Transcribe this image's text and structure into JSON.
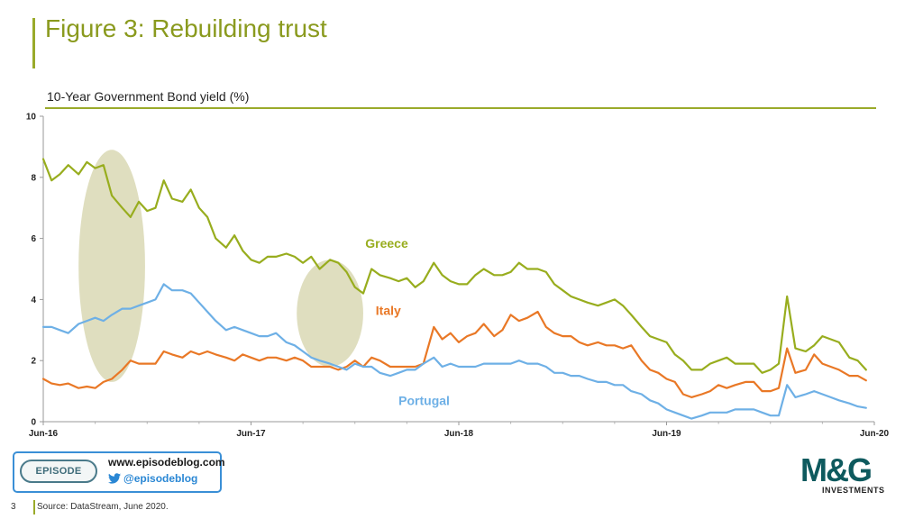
{
  "header": {
    "title": "Figure 3: Rebuilding trust",
    "subtitle": "10-Year Government Bond yield (%)"
  },
  "footer": {
    "page_number": "3",
    "source": "Source: DataStream, June 2020.",
    "promo_logo": "EPISODE",
    "promo_url": "www.episodeblog.com",
    "promo_handle": "@episodeblog",
    "brand_mark": "M&G",
    "brand_sub": "INVESTMENTS"
  },
  "colors": {
    "greece": "#98ad1e",
    "italy": "#e97826",
    "portugal": "#6eb0e6",
    "highlight": "#d9d8b4",
    "title": "#8a9a1e",
    "brand": "#0e5a5e"
  },
  "chart_data": {
    "type": "line",
    "title": "10-Year Government Bond yield (%)",
    "x_ticks": [
      "Jun-16",
      "Jun-17",
      "Jun-18",
      "Jun-19",
      "Jun-20"
    ],
    "y_ticks": [
      "0",
      "2",
      "4",
      "6",
      "8",
      "10"
    ],
    "xlim": [
      2016.5,
      2020.5
    ],
    "ylim": [
      0,
      10
    ],
    "grid": false,
    "series": [
      {
        "name": "Greece",
        "color": "#98ad1e",
        "x": [
          2016.5,
          2016.54,
          2016.58,
          2016.62,
          2016.67,
          2016.71,
          2016.75,
          2016.79,
          2016.83,
          2016.88,
          2016.92,
          2016.96,
          2017.0,
          2017.04,
          2017.08,
          2017.12,
          2017.17,
          2017.21,
          2017.25,
          2017.29,
          2017.33,
          2017.38,
          2017.42,
          2017.46,
          2017.5,
          2017.54,
          2017.58,
          2017.62,
          2017.67,
          2017.71,
          2017.75,
          2017.79,
          2017.83,
          2017.88,
          2017.92,
          2017.96,
          2018.0,
          2018.04,
          2018.08,
          2018.12,
          2018.17,
          2018.21,
          2018.25,
          2018.29,
          2018.33,
          2018.38,
          2018.42,
          2018.46,
          2018.5,
          2018.54,
          2018.58,
          2018.62,
          2018.67,
          2018.71,
          2018.75,
          2018.79,
          2018.83,
          2018.88,
          2018.92,
          2018.96,
          2019.0,
          2019.04,
          2019.08,
          2019.12,
          2019.17,
          2019.21,
          2019.25,
          2019.29,
          2019.33,
          2019.38,
          2019.42,
          2019.46,
          2019.5,
          2019.54,
          2019.58,
          2019.62,
          2019.67,
          2019.71,
          2019.75,
          2019.79,
          2019.83,
          2019.88,
          2019.92,
          2019.96,
          2020.0,
          2020.04,
          2020.08,
          2020.12,
          2020.17,
          2020.21,
          2020.25,
          2020.29,
          2020.33,
          2020.38,
          2020.42,
          2020.46
        ],
        "y": [
          8.6,
          7.9,
          8.1,
          8.4,
          8.1,
          8.5,
          8.3,
          8.4,
          7.4,
          7.0,
          6.7,
          7.2,
          6.9,
          7.0,
          7.9,
          7.3,
          7.2,
          7.6,
          7.0,
          6.7,
          6.0,
          5.7,
          6.1,
          5.6,
          5.3,
          5.2,
          5.4,
          5.4,
          5.5,
          5.4,
          5.2,
          5.4,
          5.0,
          5.3,
          5.2,
          4.9,
          4.4,
          4.2,
          5.0,
          4.8,
          4.7,
          4.6,
          4.7,
          4.4,
          4.6,
          5.2,
          4.8,
          4.6,
          4.5,
          4.5,
          4.8,
          5.0,
          4.8,
          4.8,
          4.9,
          5.2,
          5.0,
          5.0,
          4.9,
          4.5,
          4.3,
          4.1,
          4.0,
          3.9,
          3.8,
          3.9,
          4.0,
          3.8,
          3.5,
          3.1,
          2.8,
          2.7,
          2.6,
          2.2,
          2.0,
          1.7,
          1.7,
          1.9,
          2.0,
          2.1,
          1.9,
          1.9,
          1.9,
          1.6,
          1.7,
          1.9,
          4.1,
          2.4,
          2.3,
          2.5,
          2.8,
          2.7,
          2.6,
          2.1,
          2.0,
          1.7
        ]
      },
      {
        "name": "Italy",
        "color": "#e97826",
        "x": [
          2016.5,
          2016.54,
          2016.58,
          2016.62,
          2016.67,
          2016.71,
          2016.75,
          2016.79,
          2016.83,
          2016.88,
          2016.92,
          2016.96,
          2017.0,
          2017.04,
          2017.08,
          2017.12,
          2017.17,
          2017.21,
          2017.25,
          2017.29,
          2017.33,
          2017.38,
          2017.42,
          2017.46,
          2017.5,
          2017.54,
          2017.58,
          2017.62,
          2017.67,
          2017.71,
          2017.75,
          2017.79,
          2017.83,
          2017.88,
          2017.92,
          2017.96,
          2018.0,
          2018.04,
          2018.08,
          2018.12,
          2018.17,
          2018.21,
          2018.25,
          2018.29,
          2018.33,
          2018.38,
          2018.42,
          2018.46,
          2018.5,
          2018.54,
          2018.58,
          2018.62,
          2018.67,
          2018.71,
          2018.75,
          2018.79,
          2018.83,
          2018.88,
          2018.92,
          2018.96,
          2019.0,
          2019.04,
          2019.08,
          2019.12,
          2019.17,
          2019.21,
          2019.25,
          2019.29,
          2019.33,
          2019.38,
          2019.42,
          2019.46,
          2019.5,
          2019.54,
          2019.58,
          2019.62,
          2019.67,
          2019.71,
          2019.75,
          2019.79,
          2019.83,
          2019.88,
          2019.92,
          2019.96,
          2020.0,
          2020.04,
          2020.08,
          2020.12,
          2020.17,
          2020.21,
          2020.25,
          2020.29,
          2020.33,
          2020.38,
          2020.42,
          2020.46
        ],
        "y": [
          1.4,
          1.25,
          1.2,
          1.25,
          1.1,
          1.15,
          1.1,
          1.3,
          1.4,
          1.7,
          2.0,
          1.9,
          1.9,
          1.9,
          2.3,
          2.2,
          2.1,
          2.3,
          2.2,
          2.3,
          2.2,
          2.1,
          2.0,
          2.2,
          2.1,
          2.0,
          2.1,
          2.1,
          2.0,
          2.1,
          2.0,
          1.8,
          1.8,
          1.8,
          1.7,
          1.8,
          2.0,
          1.8,
          2.1,
          2.0,
          1.8,
          1.8,
          1.8,
          1.8,
          1.9,
          3.1,
          2.7,
          2.9,
          2.6,
          2.8,
          2.9,
          3.2,
          2.8,
          3.0,
          3.5,
          3.3,
          3.4,
          3.6,
          3.1,
          2.9,
          2.8,
          2.8,
          2.6,
          2.5,
          2.6,
          2.5,
          2.5,
          2.4,
          2.5,
          2.0,
          1.7,
          1.6,
          1.4,
          1.3,
          0.9,
          0.8,
          0.9,
          1.0,
          1.2,
          1.1,
          1.2,
          1.3,
          1.3,
          1.0,
          1.0,
          1.1,
          2.4,
          1.6,
          1.7,
          2.2,
          1.9,
          1.8,
          1.7,
          1.5,
          1.5,
          1.35
        ]
      },
      {
        "name": "Portugal",
        "color": "#6eb0e6",
        "x": [
          2016.5,
          2016.54,
          2016.58,
          2016.62,
          2016.67,
          2016.71,
          2016.75,
          2016.79,
          2016.83,
          2016.88,
          2016.92,
          2016.96,
          2017.0,
          2017.04,
          2017.08,
          2017.12,
          2017.17,
          2017.21,
          2017.25,
          2017.29,
          2017.33,
          2017.38,
          2017.42,
          2017.46,
          2017.5,
          2017.54,
          2017.58,
          2017.62,
          2017.67,
          2017.71,
          2017.75,
          2017.79,
          2017.83,
          2017.88,
          2017.92,
          2017.96,
          2018.0,
          2018.04,
          2018.08,
          2018.12,
          2018.17,
          2018.21,
          2018.25,
          2018.29,
          2018.33,
          2018.38,
          2018.42,
          2018.46,
          2018.5,
          2018.54,
          2018.58,
          2018.62,
          2018.67,
          2018.71,
          2018.75,
          2018.79,
          2018.83,
          2018.88,
          2018.92,
          2018.96,
          2019.0,
          2019.04,
          2019.08,
          2019.12,
          2019.17,
          2019.21,
          2019.25,
          2019.29,
          2019.33,
          2019.38,
          2019.42,
          2019.46,
          2019.5,
          2019.54,
          2019.58,
          2019.62,
          2019.67,
          2019.71,
          2019.75,
          2019.79,
          2019.83,
          2019.88,
          2019.92,
          2019.96,
          2020.0,
          2020.04,
          2020.08,
          2020.12,
          2020.17,
          2020.21,
          2020.25,
          2020.29,
          2020.33,
          2020.38,
          2020.42,
          2020.46
        ],
        "y": [
          3.1,
          3.1,
          3.0,
          2.9,
          3.2,
          3.3,
          3.4,
          3.3,
          3.5,
          3.7,
          3.7,
          3.8,
          3.9,
          4.0,
          4.5,
          4.3,
          4.3,
          4.2,
          3.9,
          3.6,
          3.3,
          3.0,
          3.1,
          3.0,
          2.9,
          2.8,
          2.8,
          2.9,
          2.6,
          2.5,
          2.3,
          2.1,
          2.0,
          1.9,
          1.8,
          1.7,
          1.9,
          1.8,
          1.8,
          1.6,
          1.5,
          1.6,
          1.7,
          1.7,
          1.9,
          2.1,
          1.8,
          1.9,
          1.8,
          1.8,
          1.8,
          1.9,
          1.9,
          1.9,
          1.9,
          2.0,
          1.9,
          1.9,
          1.8,
          1.6,
          1.6,
          1.5,
          1.5,
          1.4,
          1.3,
          1.3,
          1.2,
          1.2,
          1.0,
          0.9,
          0.7,
          0.6,
          0.4,
          0.3,
          0.2,
          0.1,
          0.2,
          0.3,
          0.3,
          0.3,
          0.4,
          0.4,
          0.4,
          0.3,
          0.2,
          0.2,
          1.2,
          0.8,
          0.9,
          1.0,
          0.9,
          0.8,
          0.7,
          0.6,
          0.5,
          0.45
        ]
      }
    ],
    "annotations": [
      {
        "text": "Greece",
        "x": 2018.05,
        "y": 5.7,
        "color": "#98ad1e"
      },
      {
        "text": "Italy",
        "x": 2018.1,
        "y": 3.5,
        "color": "#e97826"
      },
      {
        "text": "Portugal",
        "x": 2018.21,
        "y": 0.55,
        "color": "#6eb0e6"
      }
    ],
    "highlights": [
      {
        "x_center": 2016.83,
        "y_center": 5.1,
        "x_radius": 0.16,
        "y_radius": 3.8
      },
      {
        "x_center": 2017.88,
        "y_center": 3.55,
        "x_radius": 0.16,
        "y_radius": 1.75
      }
    ]
  }
}
